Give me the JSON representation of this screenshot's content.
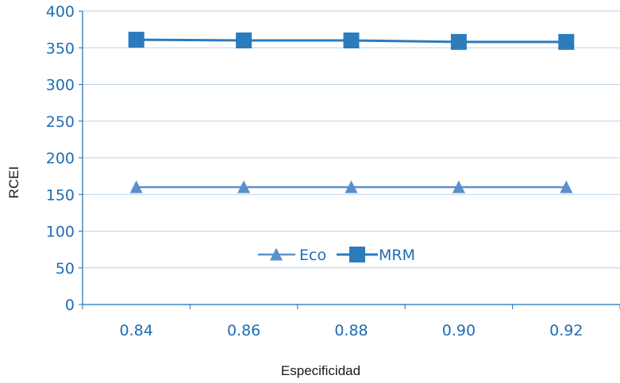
{
  "chart_data": {
    "type": "line",
    "title": "",
    "xlabel": "Especificidad",
    "ylabel": "RCEI",
    "categories": [
      "0.84",
      "0.86",
      "0.88",
      "0.90",
      "0.92"
    ],
    "ylim": [
      0,
      400
    ],
    "yticks": [
      "0",
      "50",
      "100",
      "150",
      "200",
      "250",
      "300",
      "350",
      "400"
    ],
    "grid": "horizontal",
    "legend_position": "center",
    "series": [
      {
        "name": "Eco",
        "marker": "triangle",
        "color": "#5b8fcb",
        "values": [
          160,
          160,
          160,
          160,
          160
        ]
      },
      {
        "name": "MRM",
        "marker": "square",
        "color": "#2b7bbd",
        "values": [
          361,
          360,
          360,
          358,
          358
        ]
      }
    ],
    "colors": {
      "axis": "#1f6db4",
      "grid": "#bcd3ea",
      "tick_text": "#1f6db4"
    }
  }
}
